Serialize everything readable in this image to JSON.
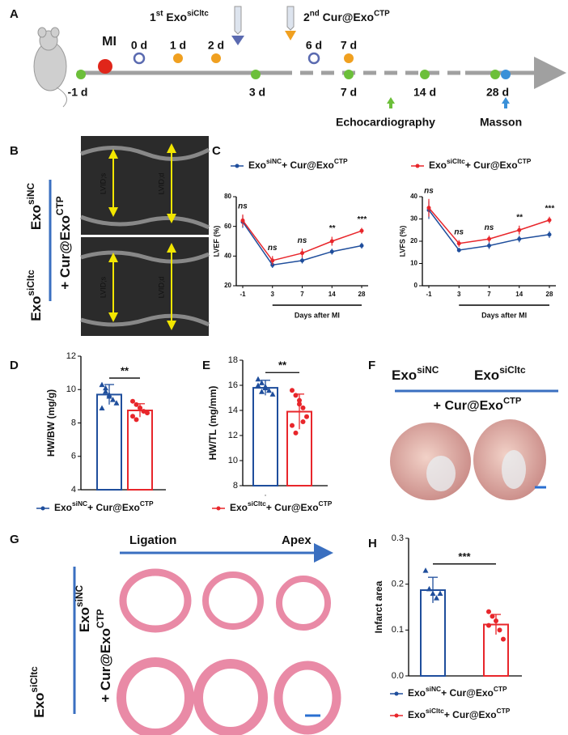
{
  "figure": {
    "panel_letters": [
      "A",
      "B",
      "C",
      "D",
      "E",
      "F",
      "G",
      "H"
    ],
    "timeline": {
      "injection_1": [
        "1",
        "st",
        " Exo",
        "siCltc"
      ],
      "injection_2": [
        "2",
        "nd",
        " Cur@Exo",
        "CTP"
      ],
      "mi": "MI",
      "days": [
        "-1 d",
        "0 d",
        "1 d",
        "2 d",
        "3 d",
        "6 d",
        "7 d",
        "7 d",
        "14 d",
        "28 d"
      ],
      "echocardiography": "Echocardiography",
      "masson": "Masson"
    },
    "echo": {
      "group_1": [
        "Exo",
        "siNC"
      ],
      "group_2": [
        "Exo",
        "siCltc"
      ],
      "treatment": [
        "+ Cur@Exo",
        "CTP"
      ],
      "labels": [
        "LVID;s",
        "LVID;d",
        "LVID;s",
        "LVID;d"
      ]
    },
    "hearts": {
      "group_1": [
        "Exo",
        "siNC"
      ],
      "group_2": [
        "Exo",
        "siCltc"
      ],
      "treatment": [
        "+ Cur@Exo",
        "CTP"
      ]
    },
    "histology": {
      "start": "Ligation",
      "end": "Apex",
      "group_1": [
        "Exo",
        "siNC"
      ],
      "group_2": [
        "Exo",
        "siCltc"
      ],
      "treatment": [
        "+ Cur@Exo",
        "CTP"
      ]
    }
  },
  "chart_data": [
    {
      "type": "line",
      "ylabel": "LVEF (%)",
      "xlabel": "Days after MI",
      "categories": [
        "-1",
        "3",
        "7",
        "14",
        "28"
      ],
      "ylim": [
        20,
        80
      ],
      "yticks": [
        20,
        40,
        60,
        80
      ],
      "annotations": [
        "ns",
        "ns",
        "ns",
        "**",
        "***"
      ],
      "series": [
        {
          "name": [
            "Exo",
            "siNC",
            "+ Cur@Exo",
            "CTP"
          ],
          "color": "#1f4e9c",
          "values": [
            63,
            34,
            37,
            43,
            47
          ],
          "errors": [
            4,
            2,
            2,
            2,
            2
          ]
        },
        {
          "name": [
            "Exo",
            "siCltc",
            "+ Cur@Exo",
            "CTP"
          ],
          "color": "#e8262b",
          "values": [
            64,
            37,
            42,
            50,
            57
          ],
          "errors": [
            4,
            3,
            3,
            3,
            2
          ]
        }
      ]
    },
    {
      "type": "line",
      "ylabel": "LVFS (%)",
      "xlabel": "Days after MI",
      "categories": [
        "-1",
        "3",
        "7",
        "14",
        "28"
      ],
      "ylim": [
        0,
        40
      ],
      "yticks": [
        0,
        10,
        20,
        30,
        40
      ],
      "annotations": [
        "ns",
        "ns",
        "ns",
        "**",
        "***"
      ],
      "series": [
        {
          "name": [
            "Exo",
            "siNC",
            "+ Cur@Exo",
            "CTP"
          ],
          "color": "#1f4e9c",
          "values": [
            34,
            16,
            18,
            21,
            23
          ],
          "errors": [
            4,
            1,
            1.5,
            1.5,
            1.5
          ]
        },
        {
          "name": [
            "Exo",
            "siCltc",
            "+ Cur@Exo",
            "CTP"
          ],
          "color": "#e8262b",
          "values": [
            35,
            19,
            21,
            25,
            29.5
          ],
          "errors": [
            4,
            1.5,
            1.5,
            2,
            1.5
          ]
        }
      ]
    },
    {
      "type": "bar",
      "ylabel": "HW/BW (mg/g)",
      "categories": [
        null,
        null
      ],
      "ylim": [
        4,
        12
      ],
      "yticks": [
        4,
        6,
        8,
        10,
        12
      ],
      "annotation": "**",
      "series": [
        {
          "name": [
            "Exo",
            "siNC",
            "+ Cur@Exo",
            "CTP"
          ],
          "color": "#1f4e9c",
          "values": [
            9.7,
            null
          ],
          "errors": [
            0.6,
            null
          ],
          "points": [
            [
              10.3,
              9.9,
              9.6,
              9.4,
              9.2,
              8.9,
              10.1,
              9.7
            ],
            []
          ]
        },
        {
          "name": [
            "Exo",
            "siCltc",
            "+ Cur@Exo",
            "CTP"
          ],
          "color": "#e8262b",
          "values": [
            null,
            8.75
          ],
          "errors": [
            null,
            0.4
          ],
          "points": [
            [],
            [
              9.3,
              9.1,
              8.9,
              8.7,
              8.6,
              8.4,
              8.2,
              8.9
            ]
          ]
        }
      ]
    },
    {
      "type": "bar",
      "ylabel": "HW/TL (mg/mm)",
      "categories": [
        ".",
        null
      ],
      "ylim": [
        8,
        18
      ],
      "yticks": [
        8,
        10,
        12,
        14,
        16,
        18
      ],
      "annotation": "**",
      "series": [
        {
          "name": [
            "Exo",
            "siNC",
            "+ Cur@Exo",
            "CTP"
          ],
          "color": "#1f4e9c",
          "values": [
            15.8,
            null
          ],
          "errors": [
            0.6,
            null
          ],
          "points": [
            [
              16.5,
              16.2,
              15.9,
              15.6,
              15.3,
              16.0,
              15.5,
              15.8
            ],
            []
          ]
        },
        {
          "name": [
            "Exo",
            "siCltc",
            "+ Cur@Exo",
            "CTP"
          ],
          "color": "#e8262b",
          "values": [
            null,
            13.9
          ],
          "errors": [
            null,
            1.4
          ],
          "points": [
            [],
            [
              15.6,
              15.2,
              14.8,
              14.2,
              13.5,
              12.8,
              12.2,
              14.5,
              13.1
            ]
          ]
        }
      ]
    },
    {
      "type": "bar",
      "ylabel": "Infarct area",
      "categories": [
        null,
        null
      ],
      "ylim": [
        0,
        0.3
      ],
      "yticks": [
        {
          "value": 0,
          "label": "0.0"
        },
        0.1,
        0.2,
        0.3
      ],
      "annotation": "***",
      "series": [
        {
          "name": [
            "Exo",
            "siNC",
            "+ Cur@Exo",
            "CTP"
          ],
          "color": "#1f4e9c",
          "values": [
            0.187,
            null
          ],
          "errors": [
            0.028,
            null
          ],
          "points": [
            [
              0.23,
              0.19,
              0.18,
              0.17,
              0.18
            ],
            []
          ]
        },
        {
          "name": [
            "Exo",
            "siCltc",
            "+ Cur@Exo",
            "CTP"
          ],
          "color": "#e8262b",
          "values": [
            null,
            0.112
          ],
          "errors": [
            null,
            0.022
          ],
          "points": [
            [],
            [
              0.14,
              0.13,
              0.12,
              0.1,
              0.08,
              0.11
            ]
          ]
        }
      ]
    }
  ]
}
